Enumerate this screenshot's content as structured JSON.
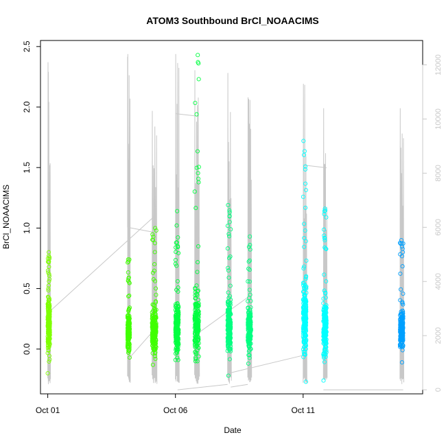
{
  "chart_data": {
    "type": "scatter",
    "title": "ATOM3 Southbound BrCl_NOAACIMS",
    "xlabel": "Date",
    "ylabel": "BrCl_NOAACIMS",
    "x_ticks": [
      "Oct 01",
      "Oct 06",
      "Oct 11"
    ],
    "y_ticks": [
      "0.0",
      "0.5",
      "1.0",
      "1.5",
      "2.0",
      "2.5"
    ],
    "y2_ticks": [
      "0",
      "2000",
      "4000",
      "6000",
      "8000",
      "10000",
      "12000"
    ],
    "xlim": [
      "2017-09-30T17:10",
      "2017-10-15T16:20"
    ],
    "ylim": [
      -0.37,
      2.55
    ],
    "y2lim": [
      -150,
      12900
    ],
    "tick_dates": [
      "2017-10-01",
      "2017-10-06",
      "2017-10-11"
    ],
    "grid": false,
    "legend": "none",
    "marker": "open circle",
    "colors": {
      "axis": "#000000",
      "altitude": "#c8c8c8",
      "right_axis_text": "#c8c8c8"
    },
    "series": [
      {
        "color": "#7fff00",
        "flights": [
          {
            "start": "2017-10-01T00:00",
            "end": "2017-10-01T02:00",
            "median": 0.2,
            "spread": 0.16,
            "max": 0.8,
            "min": -0.2
          }
        ]
      },
      {
        "color": "#40ff00",
        "flights": [
          {
            "start": "2017-10-04T03:00",
            "end": "2017-10-04T05:00",
            "median": 0.14,
            "spread": 0.1,
            "max": 0.74,
            "min": -0.07
          },
          {
            "start": "2017-10-05T02:00",
            "end": "2017-10-05T06:00",
            "median": 0.16,
            "spread": 0.13,
            "max": 1.0,
            "min": -0.13
          }
        ]
      },
      {
        "color": "#00ff40",
        "flights": [
          {
            "start": "2017-10-06T00:00",
            "end": "2017-10-06T03:00",
            "median": 0.18,
            "spread": 0.16,
            "max": 1.14,
            "min": -0.09
          },
          {
            "start": "2017-10-06T18:00",
            "end": "2017-10-06T22:00",
            "median": 0.2,
            "spread": 0.18,
            "max": 2.43,
            "min": -0.1
          }
        ]
      },
      {
        "color": "#00ff80",
        "flights": [
          {
            "start": "2017-10-08T01:00",
            "end": "2017-10-08T04:00",
            "median": 0.19,
            "spread": 0.15,
            "max": 1.19,
            "min": -0.22
          },
          {
            "start": "2017-10-08T20:00",
            "end": "2017-10-08T23:00",
            "median": 0.14,
            "spread": 0.12,
            "max": 0.93,
            "min": -0.12
          }
        ]
      },
      {
        "color": "#00ffff",
        "flights": [
          {
            "start": "2017-10-11T00:00",
            "end": "2017-10-11T03:00",
            "median": 0.25,
            "spread": 0.2,
            "max": 1.72,
            "min": -0.27
          },
          {
            "start": "2017-10-11T19:00",
            "end": "2017-10-11T22:00",
            "median": 0.17,
            "spread": 0.15,
            "max": 1.16,
            "min": -0.26
          }
        ]
      },
      {
        "color": "#00a0ff",
        "flights": [
          {
            "start": "2017-10-14T19:00",
            "end": "2017-10-14T22:00",
            "median": 0.16,
            "spread": 0.1,
            "max": 0.9,
            "min": -0.11
          }
        ]
      }
    ],
    "altitude_trace": {
      "segments": [
        {
          "start": "2017-10-01T00:00",
          "end": "2017-10-01T02:00",
          "peak": 12100
        },
        {
          "start": "2017-10-04T03:00",
          "end": "2017-10-04T05:00",
          "peak": 12400
        },
        {
          "start": "2017-10-05T02:00",
          "end": "2017-10-05T06:00",
          "peak": 10300
        },
        {
          "start": "2017-10-06T00:00",
          "end": "2017-10-06T03:00",
          "peak": 12400
        },
        {
          "start": "2017-10-06T18:00",
          "end": "2017-10-06T22:00",
          "peak": 11800
        },
        {
          "start": "2017-10-08T01:00",
          "end": "2017-10-08T04:00",
          "peak": 11700
        },
        {
          "start": "2017-10-08T20:00",
          "end": "2017-10-08T23:00",
          "peak": 10800
        },
        {
          "start": "2017-10-11T00:00",
          "end": "2017-10-11T03:00",
          "peak": 11300
        },
        {
          "start": "2017-10-11T19:00",
          "end": "2017-10-11T22:00",
          "peak": 10400
        },
        {
          "start": "2017-10-14T19:00",
          "end": "2017-10-14T22:00",
          "peak": 10400
        }
      ],
      "connectors": [
        {
          "from": [
            "2017-10-01T02:00",
            2900
          ],
          "to": [
            "2017-10-05T04:00",
            6400
          ]
        },
        {
          "from": [
            "2017-10-04T03:00",
            1100
          ],
          "to": [
            "2017-10-05T06:00",
            2300
          ]
        },
        {
          "from": [
            "2017-10-04T03:00",
            12300
          ],
          "to": [
            "2017-10-04T03:00",
            6000
          ]
        },
        {
          "from": [
            "2017-10-04T03:00",
            6000
          ],
          "to": [
            "2017-10-05T06:00",
            5800
          ]
        },
        {
          "from": [
            "2017-10-06T00:00",
            10200
          ],
          "to": [
            "2017-10-06T22:00",
            10100
          ]
        },
        {
          "from": [
            "2017-10-06T02:00",
            0
          ],
          "to": [
            "2017-10-08T01:00",
            200
          ]
        },
        {
          "from": [
            "2017-10-06T18:00",
            2000
          ],
          "to": [
            "2017-10-08T23:00",
            3500
          ]
        },
        {
          "from": [
            "2017-10-08T01:00",
            600
          ],
          "to": [
            "2017-10-11T03:00",
            1300
          ]
        },
        {
          "from": [
            "2017-10-08T04:00",
            100
          ],
          "to": [
            "2017-10-08T20:00",
            200
          ]
        },
        {
          "from": [
            "2017-10-11T00:00",
            8300
          ],
          "to": [
            "2017-10-11T22:00",
            8200
          ]
        },
        {
          "from": [
            "2017-10-11T19:00",
            0
          ],
          "to": [
            "2017-10-14T22:00",
            0
          ]
        }
      ]
    }
  }
}
